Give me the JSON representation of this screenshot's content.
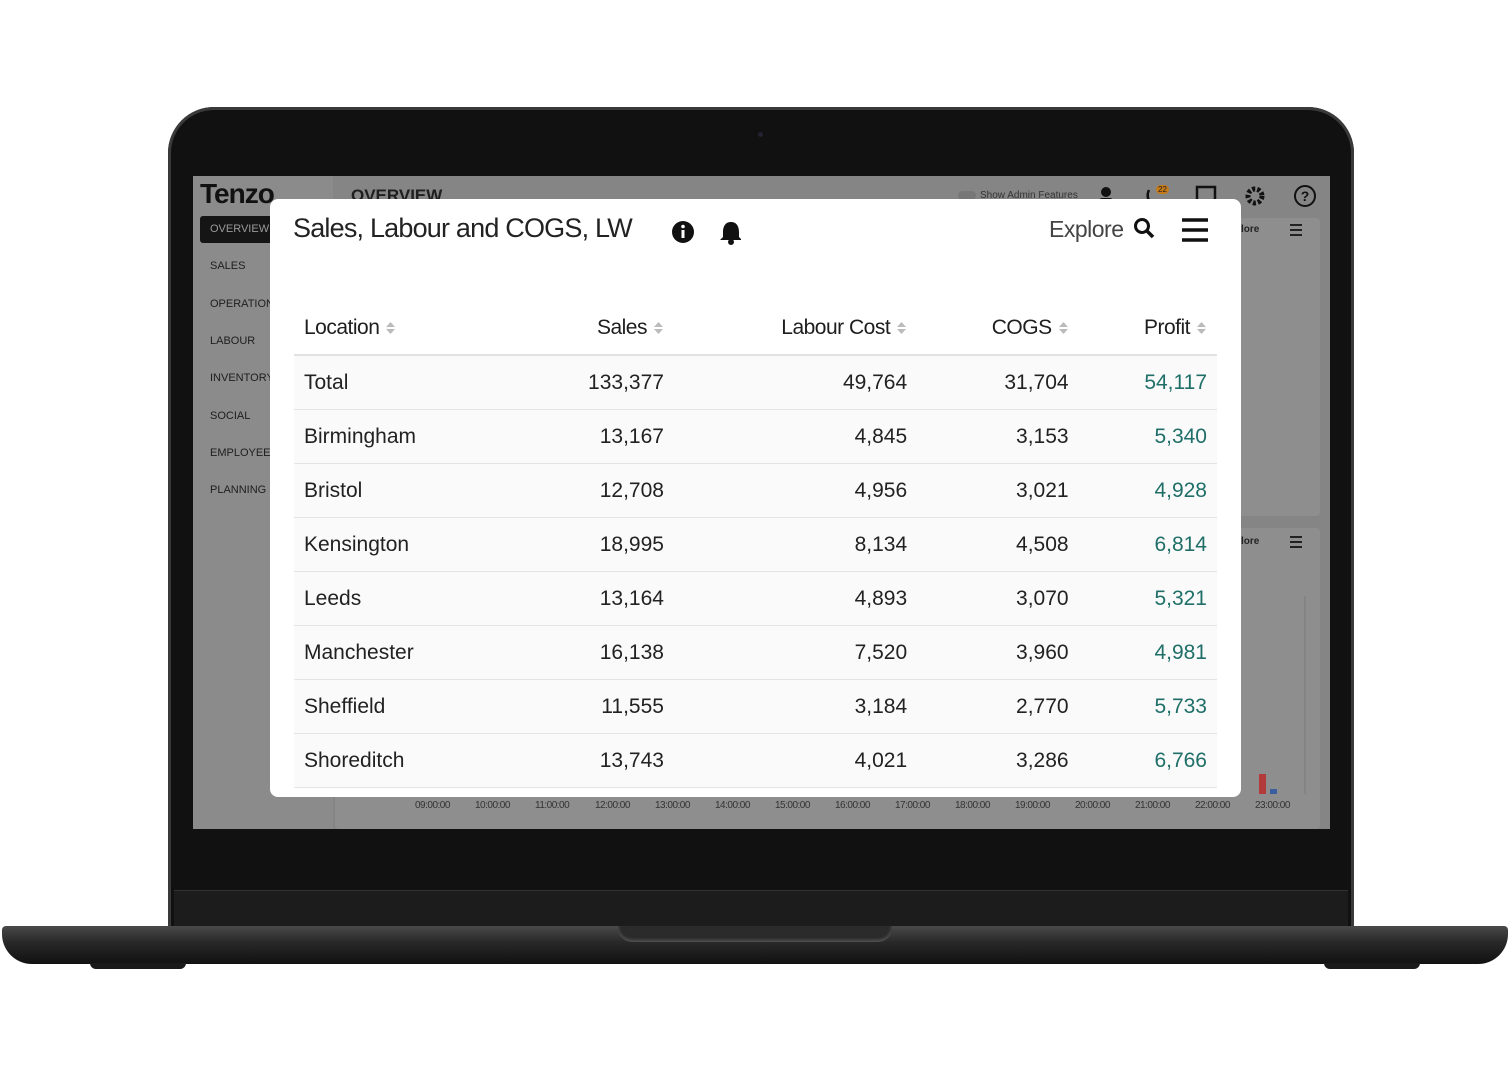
{
  "app": {
    "logo": "Tenzo",
    "page_title": "OVERVIEW",
    "admin_toggle": "Show Admin Features",
    "notification_count": "22",
    "nav": [
      "OVERVIEW",
      "SALES",
      "OPERATIONS",
      "LABOUR",
      "INVENTORY",
      "SOCIAL",
      "EMPLOYEES",
      "PLANNING"
    ],
    "panel_explore": "lore",
    "chart_hours": [
      "09:00:00",
      "10:00:00",
      "11:00:00",
      "12:00:00",
      "13:00:00",
      "14:00:00",
      "15:00:00",
      "16:00:00",
      "17:00:00",
      "18:00:00",
      "19:00:00",
      "20:00:00",
      "21:00:00",
      "22:00:00",
      "23:00:00"
    ]
  },
  "widget": {
    "title": "Sales, Labour and COGS, LW",
    "explore": "Explore",
    "table": {
      "columns": [
        "Location",
        "Sales",
        "Labour Cost",
        "COGS",
        "Profit"
      ],
      "rows": [
        [
          "Total",
          "133,377",
          "49,764",
          "31,704",
          "54,117"
        ],
        [
          "Birmingham",
          "13,167",
          "4,845",
          "3,153",
          "5,340"
        ],
        [
          "Bristol",
          "12,708",
          "4,956",
          "3,021",
          "4,928"
        ],
        [
          "Kensington",
          "18,995",
          "8,134",
          "4,508",
          "6,814"
        ],
        [
          "Leeds",
          "13,164",
          "4,893",
          "3,070",
          "5,321"
        ],
        [
          "Manchester",
          "16,138",
          "7,520",
          "3,960",
          "4,981"
        ],
        [
          "Sheffield",
          "11,555",
          "3,184",
          "2,770",
          "5,733"
        ],
        [
          "Shoreditch",
          "13,743",
          "4,021",
          "3,286",
          "6,766"
        ]
      ]
    }
  }
}
